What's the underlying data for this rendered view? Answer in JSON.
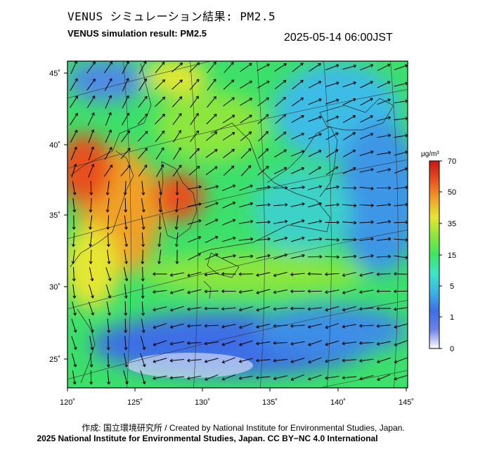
{
  "title_ja": "VENUS シミュレーション結果: PM2.5",
  "title_en": "VENUS simulation result: PM2.5",
  "timestamp": "2025-05-14 06:00JST",
  "axes": {
    "lon_ticks": [
      "120˚",
      "125˚",
      "130˚",
      "135˚",
      "140˚",
      "145˚"
    ],
    "lat_ticks": [
      "45˚",
      "40˚",
      "35˚",
      "30˚",
      "25˚"
    ]
  },
  "colorbar": {
    "unit": "μg/m³",
    "labels": [
      "70",
      "50",
      "35",
      "15",
      "5",
      "1",
      "0"
    ],
    "colors": [
      "#c71e1e",
      "#e8551e",
      "#f2a52a",
      "#e8e83a",
      "#7fe83a",
      "#3ae87f",
      "#3ad6e8",
      "#3a8de8",
      "#3a4fe0",
      "#9ab3f0",
      "#ffffff"
    ]
  },
  "credit_line1": "作成: 国立環境研究所 / Created by National Institute for Environmental Studies, Japan.",
  "credit_line2": "2025 National Institute for Environmental Studies, Japan. CC BY−NC 4.0 International"
}
